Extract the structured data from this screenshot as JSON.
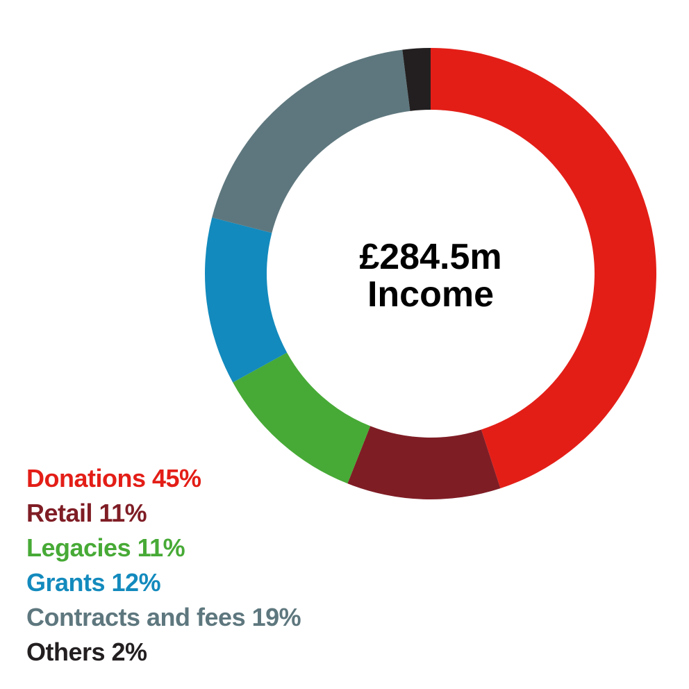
{
  "chart_data": {
    "type": "pie",
    "style": "donut",
    "center_label": [
      "£284.5m",
      "Income"
    ],
    "slices": [
      {
        "label": "Donations 45%",
        "name": "Donations",
        "value": 45,
        "color": "#e31e17"
      },
      {
        "label": "Retail 11%",
        "name": "Retail",
        "value": 11,
        "color": "#7f1d25"
      },
      {
        "label": "Legacies 11%",
        "name": "Legacies",
        "value": 11,
        "color": "#47aa36"
      },
      {
        "label": "Grants 12%",
        "name": "Grants",
        "value": 12,
        "color": "#138abd"
      },
      {
        "label": "Contracts and fees 19%",
        "name": "Contracts and fees",
        "value": 19,
        "color": "#5e777e"
      },
      {
        "label": "Others 2%",
        "name": "Others",
        "value": 2,
        "color": "#231f20"
      }
    ],
    "legend_position": "bottom-left"
  }
}
